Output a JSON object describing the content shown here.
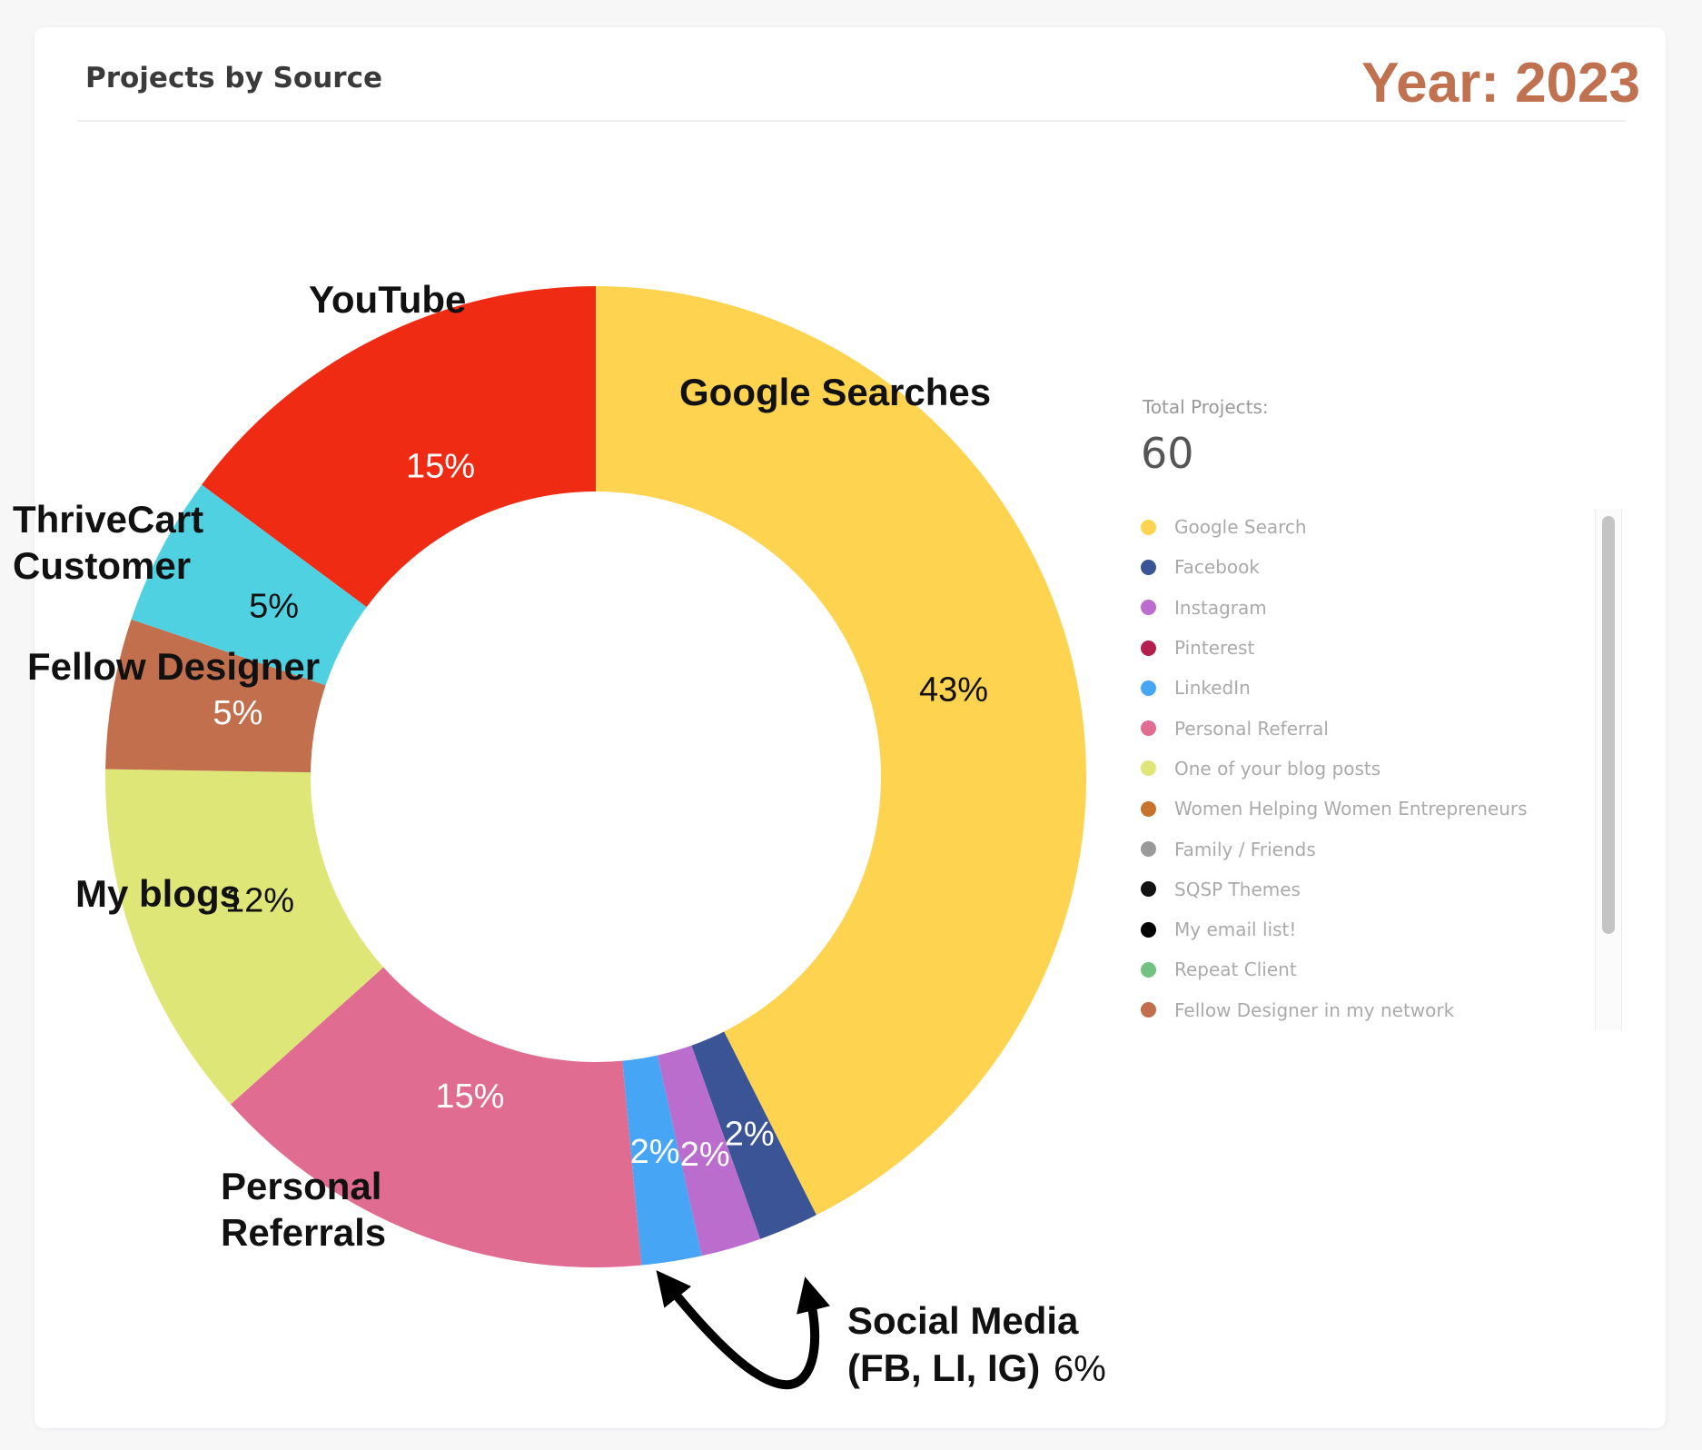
{
  "header": {
    "title": "Projects by Source",
    "year": "Year: 2023"
  },
  "summary": {
    "total_label": "Total Projects:",
    "total_value": "60"
  },
  "legend": [
    {
      "label": "Google Search",
      "color": "#fdd34f"
    },
    {
      "label": "Facebook",
      "color": "#3b5496"
    },
    {
      "label": "Instagram",
      "color": "#bb6dce"
    },
    {
      "label": "Pinterest",
      "color": "#b31f4e"
    },
    {
      "label": "LinkedIn",
      "color": "#46a5f5"
    },
    {
      "label": "Personal Referral",
      "color": "#e06c92"
    },
    {
      "label": "One of your blog posts",
      "color": "#dfe678"
    },
    {
      "label": "Women Helping Women Entrepreneurs",
      "color": "#c8732c"
    },
    {
      "label": "Family / Friends",
      "color": "#9a9a9a"
    },
    {
      "label": "SQSP Themes",
      "color": "#111111"
    },
    {
      "label": "My email list!",
      "color": "#000000"
    },
    {
      "label": "Repeat Client",
      "color": "#72c283"
    },
    {
      "label": "Fellow Designer in my network",
      "color": "#c26f4e"
    }
  ],
  "chart_data": {
    "type": "pie",
    "variant": "donut",
    "unit": "%",
    "start": "top",
    "direction": "clockwise",
    "slices": [
      {
        "label": "Google Searches",
        "value": 43,
        "value_label": "43%",
        "color": "#fdd34f"
      },
      {
        "label": "",
        "value": 2,
        "value_label": "2%",
        "color": "#3b5496"
      },
      {
        "label": "",
        "value": 2,
        "value_label": "2%",
        "color": "#bb6dce"
      },
      {
        "label": "",
        "value": 2,
        "value_label": "2%",
        "color": "#46a5f5"
      },
      {
        "label": "Personal Referrals",
        "value": 15,
        "value_label": "15%",
        "color": "#e06c92"
      },
      {
        "label": "My blogs",
        "value": 12,
        "value_label": "12%",
        "color": "#dfe678"
      },
      {
        "label": "Fellow Designer",
        "value": 5,
        "value_label": "5%",
        "color": "#c26f4e"
      },
      {
        "label": "ThriveCart Customer",
        "value": 5,
        "value_label": "5%",
        "color": "#4fd1e2"
      },
      {
        "label": "YouTube",
        "value": 15,
        "value_label": "15%",
        "color": "#ef2b14"
      }
    ],
    "annotation": {
      "label": "Social Media (FB, LI, IG)",
      "value_label": "6%"
    }
  }
}
